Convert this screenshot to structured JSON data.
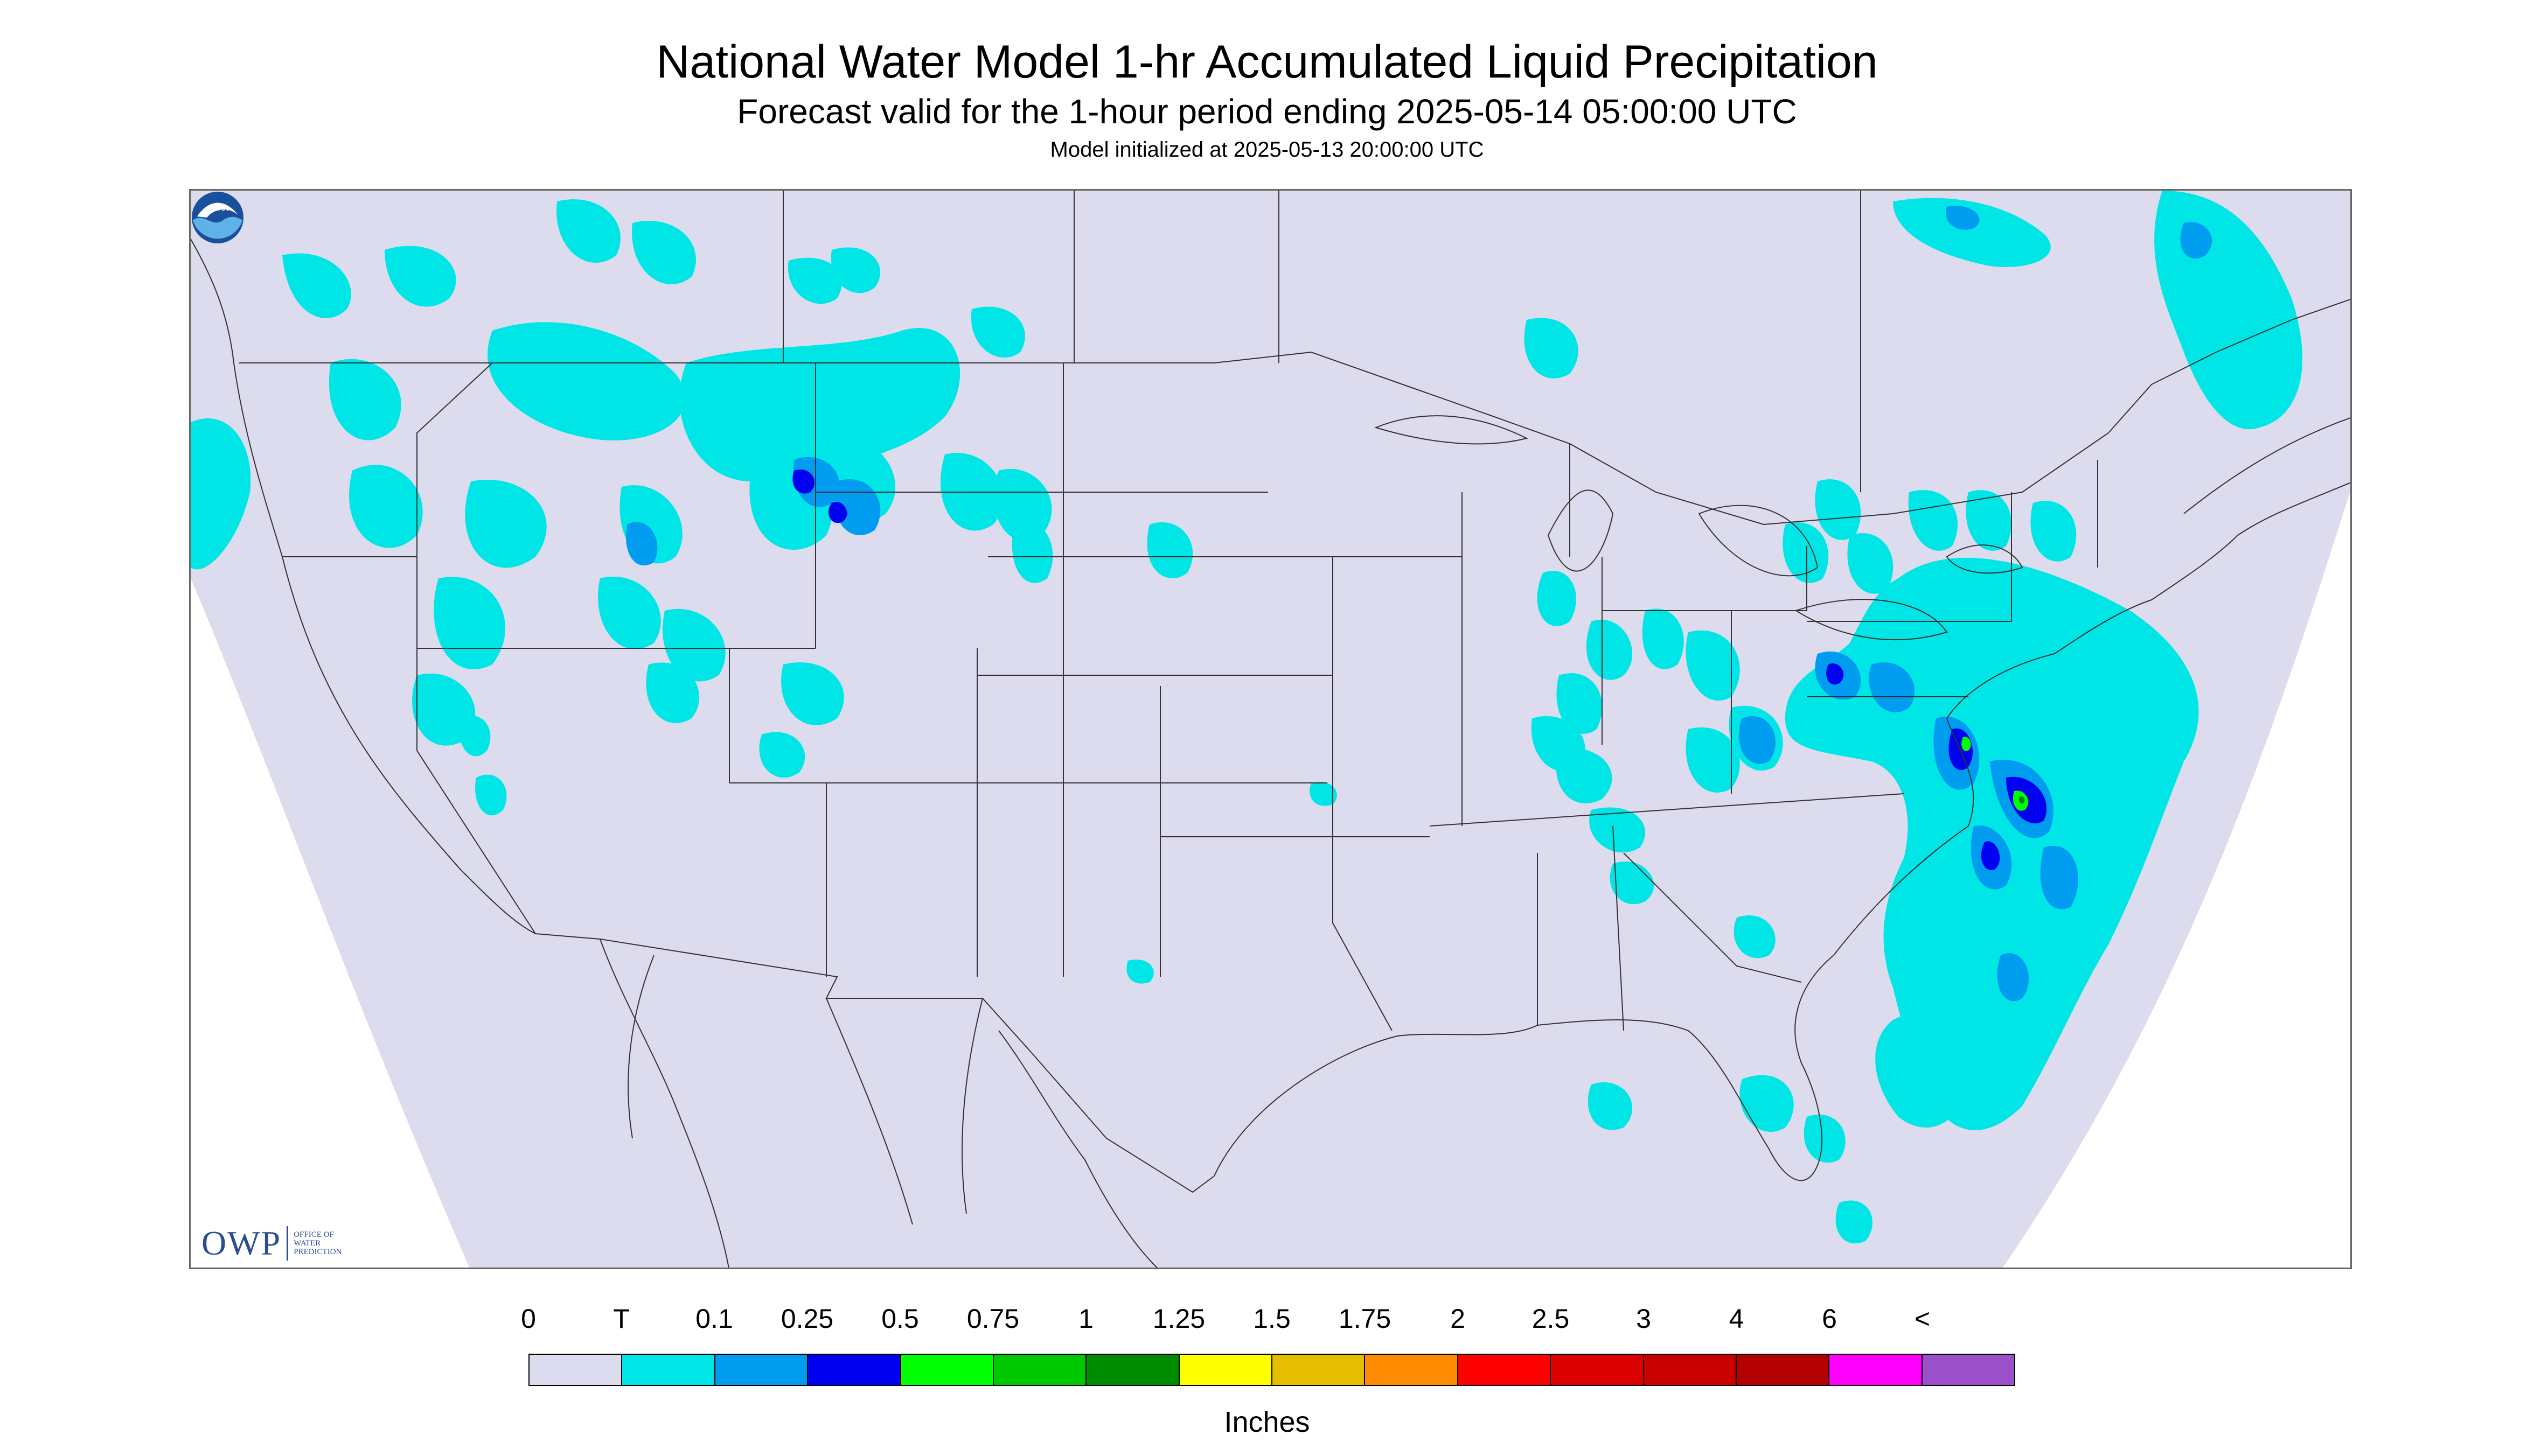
{
  "titles": {
    "main": "National Water Model 1-hr Accumulated Liquid Precipitation",
    "forecast": "Forecast valid for the 1-hour period ending 2025-05-14 05:00:00 UTC",
    "init": "Model initialized at 2025-05-13 20:00:00 UTC"
  },
  "map": {
    "background_color": "#dcdcee",
    "outside_domain_color": "#ffffff",
    "boundary_color": "#333333"
  },
  "legend": {
    "tick_labels": [
      "0",
      "T",
      "0.1",
      "0.25",
      "0.5",
      "0.75",
      "1",
      "1.25",
      "1.5",
      "1.75",
      "2",
      "2.5",
      "3",
      "4",
      "6",
      "<"
    ],
    "bins": [
      {
        "color": "#dcdcee"
      },
      {
        "color": "#00e5e5"
      },
      {
        "color": "#009cf0"
      },
      {
        "color": "#0000f0"
      },
      {
        "color": "#00ff00"
      },
      {
        "color": "#00c800"
      },
      {
        "color": "#008c00"
      },
      {
        "color": "#ffff00"
      },
      {
        "color": "#e6be00"
      },
      {
        "color": "#ff8c00"
      },
      {
        "color": "#ff0000"
      },
      {
        "color": "#dc0000"
      },
      {
        "color": "#c80000"
      },
      {
        "color": "#b40000"
      },
      {
        "color": "#ff00ff"
      },
      {
        "color": "#9a50c8"
      }
    ],
    "units": "Inches"
  },
  "logos": {
    "owp_mark": "OWP",
    "owp_lines": [
      "OFFICE OF",
      "WATER",
      "PREDICTION"
    ],
    "noaa_text": "NOAA"
  },
  "icons": [
    "owp-logo-icon",
    "noaa-logo-icon"
  ]
}
